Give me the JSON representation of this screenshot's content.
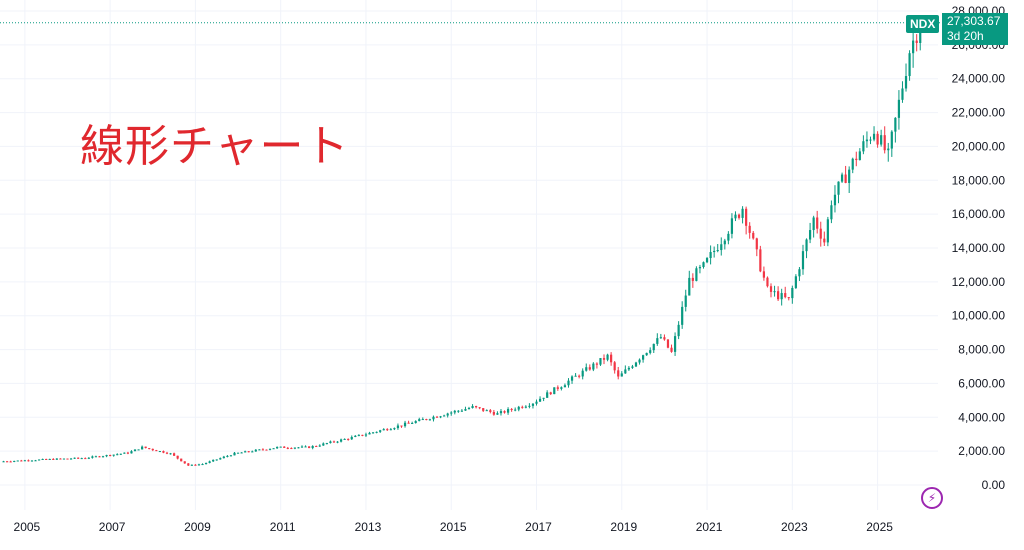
{
  "overlay_title": "線形チャート",
  "symbol": "NDX",
  "last_price": "27,303.67",
  "countdown": "3d 20h",
  "colors": {
    "up": "#089981",
    "down": "#f23645",
    "grid": "#f0f3fa",
    "overlay": "#e0282e",
    "accent": "#9c27b0"
  },
  "icons": {
    "flash": "lightning-icon"
  },
  "chart_data": {
    "type": "candlestick",
    "interval": "monthly",
    "scale": "linear",
    "grid": true,
    "ylim": [
      -1000,
      28000
    ],
    "xlim": [
      "2004-06",
      "2026-06"
    ],
    "y_ticks": [
      "0.00",
      "2,000.00",
      "4,000.00",
      "6,000.00",
      "8,000.00",
      "10,000.00",
      "12,000.00",
      "14,000.00",
      "16,000.00",
      "18,000.00",
      "20,000.00",
      "22,000.00",
      "24,000.00",
      "26,000.00",
      "28,000.00"
    ],
    "x_ticks": [
      "2005",
      "2007",
      "2009",
      "2011",
      "2013",
      "2015",
      "2017",
      "2019",
      "2021",
      "2023",
      "2025"
    ],
    "last_price_line": 27303.67,
    "close_anchors": [
      {
        "date": "2004-07",
        "close": 1400
      },
      {
        "date": "2005-06",
        "close": 1500
      },
      {
        "date": "2006-06",
        "close": 1600
      },
      {
        "date": "2007-06",
        "close": 1900
      },
      {
        "date": "2007-10",
        "close": 2230
      },
      {
        "date": "2008-06",
        "close": 1850
      },
      {
        "date": "2008-11",
        "close": 1150
      },
      {
        "date": "2009-03",
        "close": 1240
      },
      {
        "date": "2009-12",
        "close": 1860
      },
      {
        "date": "2010-12",
        "close": 2220
      },
      {
        "date": "2011-09",
        "close": 2230
      },
      {
        "date": "2012-09",
        "close": 2800
      },
      {
        "date": "2013-12",
        "close": 3590
      },
      {
        "date": "2014-12",
        "close": 4240
      },
      {
        "date": "2015-07",
        "close": 4600
      },
      {
        "date": "2016-02",
        "close": 4200
      },
      {
        "date": "2016-12",
        "close": 4860
      },
      {
        "date": "2017-12",
        "close": 6400
      },
      {
        "date": "2018-09",
        "close": 7600
      },
      {
        "date": "2018-12",
        "close": 6330
      },
      {
        "date": "2019-12",
        "close": 8730
      },
      {
        "date": "2020-03",
        "close": 7810
      },
      {
        "date": "2020-08",
        "close": 12110
      },
      {
        "date": "2020-12",
        "close": 12890
      },
      {
        "date": "2021-11",
        "close": 16400
      },
      {
        "date": "2022-06",
        "close": 11500
      },
      {
        "date": "2022-12",
        "close": 10900
      },
      {
        "date": "2023-07",
        "close": 15750
      },
      {
        "date": "2023-10",
        "close": 14400
      },
      {
        "date": "2023-12",
        "close": 16800
      },
      {
        "date": "2024-07",
        "close": 19400
      },
      {
        "date": "2024-12",
        "close": 21000
      },
      {
        "date": "2025-04",
        "close": 19400
      },
      {
        "date": "2025-10",
        "close": 25700
      },
      {
        "date": "2026-01",
        "close": 27303.67
      }
    ]
  }
}
